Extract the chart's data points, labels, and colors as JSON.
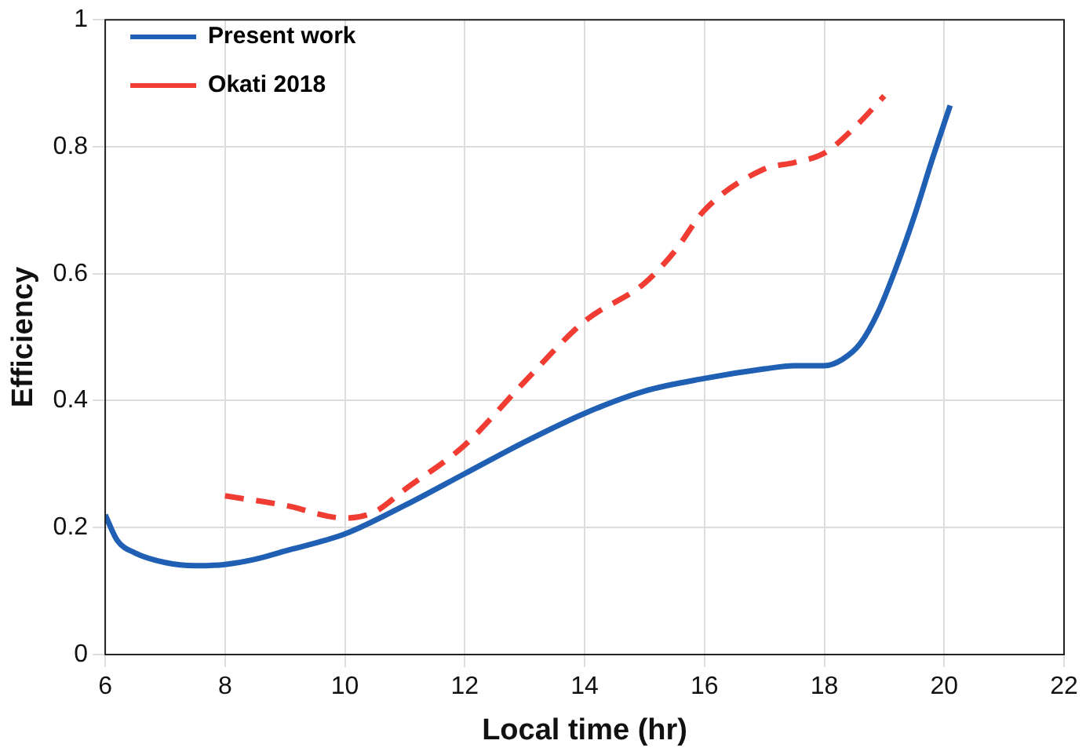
{
  "chart_data": {
    "type": "line",
    "xlabel": "Local time (hr)",
    "ylabel": "Efficiency",
    "xlim": [
      6,
      22
    ],
    "xticks": [
      6,
      8,
      10,
      12,
      14,
      16,
      18,
      20,
      22
    ],
    "ylim": [
      0,
      1
    ],
    "yticks": [
      0,
      0.2,
      0.4,
      0.6,
      0.8,
      1
    ],
    "grid": true,
    "legend": "top left",
    "marker": "none",
    "series": [
      {
        "name": "Present work",
        "color": "#1f5fb4",
        "line_style": "solid",
        "x": [
          6,
          6.2,
          6.5,
          7,
          7.5,
          8,
          8.5,
          9,
          10,
          11,
          12,
          13,
          14,
          15,
          16,
          17,
          17.5,
          18,
          18.3,
          18.6,
          18.9,
          19.2,
          19.5,
          19.8,
          20.1
        ],
        "values": [
          0.22,
          0.18,
          0.16,
          0.145,
          0.14,
          0.142,
          0.15,
          0.163,
          0.19,
          0.235,
          0.285,
          0.335,
          0.38,
          0.415,
          0.435,
          0.45,
          0.455,
          0.455,
          0.465,
          0.49,
          0.54,
          0.61,
          0.69,
          0.78,
          0.865
        ]
      },
      {
        "name": "Okati 2018",
        "color": "#f03c32",
        "line_style": "dashed",
        "x": [
          8,
          9,
          10,
          10.5,
          11,
          12,
          13,
          14,
          15,
          15.5,
          16,
          17,
          17.5,
          18,
          18.5,
          19
        ],
        "values": [
          0.25,
          0.235,
          0.215,
          0.225,
          0.26,
          0.33,
          0.43,
          0.525,
          0.585,
          0.635,
          0.7,
          0.765,
          0.775,
          0.79,
          0.83,
          0.88
        ]
      }
    ]
  }
}
